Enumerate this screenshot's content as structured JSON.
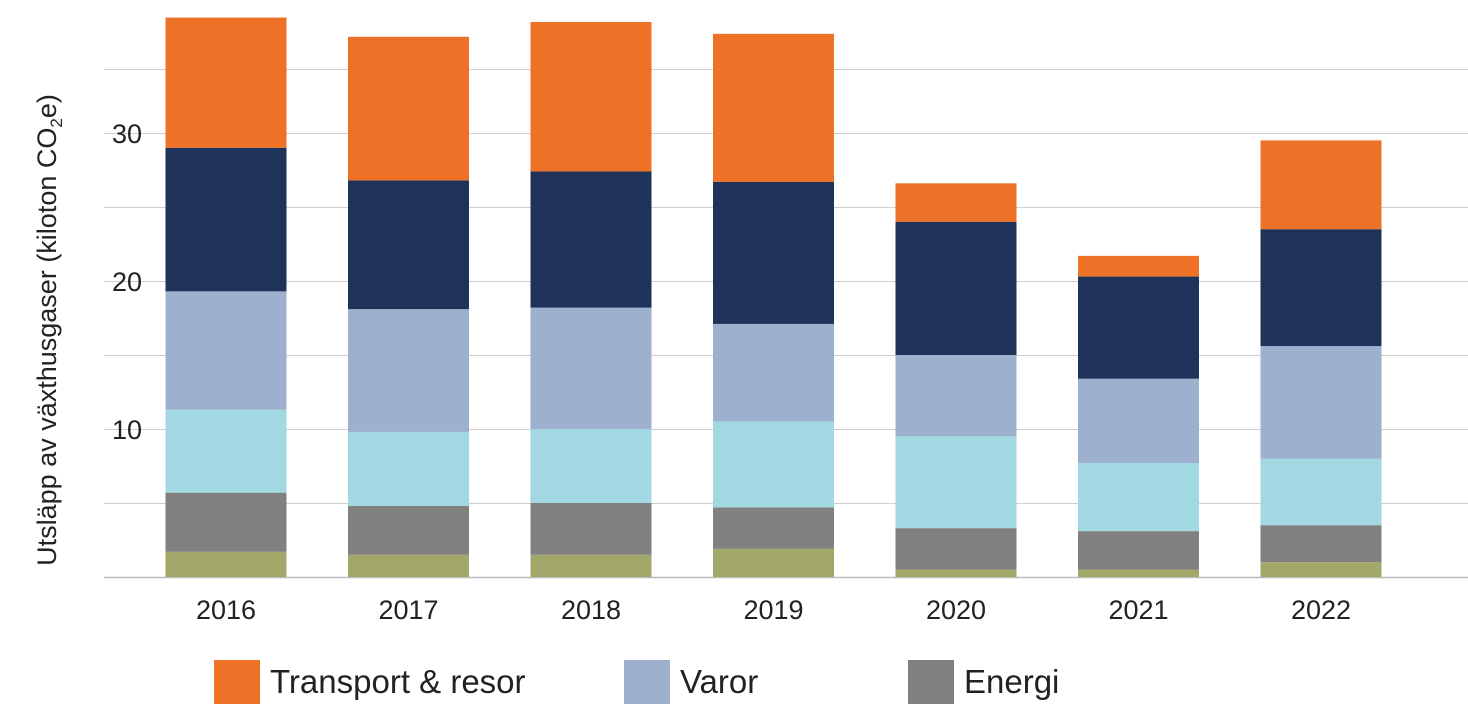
{
  "chart_data": {
    "type": "bar",
    "stacked": true,
    "title": "",
    "xlabel": "",
    "ylabel": "Utsläpp av växthusgaser (kiloton CO₂e)",
    "ylabel_parts": {
      "before": "Utsläpp av växthusgaser (kiloton CO",
      "sub": "2",
      "after": "e)"
    },
    "ylim": [
      0,
      38.5
    ],
    "yticks": [
      10,
      20,
      30
    ],
    "grid": true,
    "legend_position": "bottom",
    "categories": [
      "2016",
      "2017",
      "2018",
      "2019",
      "2020",
      "2021",
      "2022"
    ],
    "series": [
      {
        "id": "green",
        "color": "#a2a86a",
        "values": [
          1.7,
          1.5,
          1.5,
          1.9,
          0.5,
          0.5,
          1.0
        ]
      },
      {
        "name": "Energi",
        "color": "#808080",
        "values": [
          4.0,
          3.3,
          3.5,
          2.8,
          2.8,
          2.6,
          2.5
        ]
      },
      {
        "id": "lightblue",
        "color": "#a1d8e1",
        "values": [
          5.6,
          5.0,
          5.0,
          5.8,
          6.2,
          4.6,
          4.5
        ]
      },
      {
        "name": "Varor",
        "color": "#9db0cd",
        "values": [
          8.0,
          8.3,
          8.2,
          6.6,
          5.5,
          5.7,
          7.6
        ]
      },
      {
        "id": "navy",
        "color": "#1f335a",
        "values": [
          9.7,
          8.7,
          9.2,
          9.6,
          9.0,
          6.9,
          7.9
        ]
      },
      {
        "name": "Transport & resor",
        "color": "#ed7127",
        "values": [
          8.8,
          9.7,
          10.1,
          10.0,
          2.6,
          1.4,
          6.0
        ]
      }
    ],
    "legend": [
      {
        "label": "Transport & resor",
        "color": "#ed7127"
      },
      {
        "label": "Varor",
        "color": "#9db0cd"
      },
      {
        "label": "Energi",
        "color": "#808080"
      }
    ]
  }
}
